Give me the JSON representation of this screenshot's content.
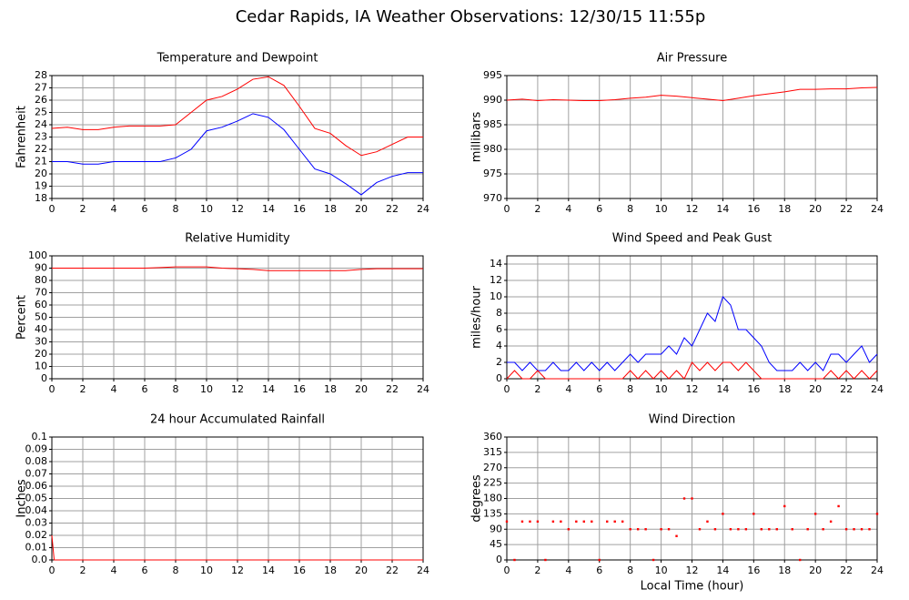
{
  "title": "Cedar Rapids, IA Weather Observations: 12/30/15 11:55p",
  "chart_data": [
    {
      "type": "line",
      "title": "Temperature and Dewpoint",
      "ylabel": "Fahrenheit",
      "x": [
        0,
        1,
        2,
        3,
        4,
        5,
        6,
        7,
        8,
        9,
        10,
        11,
        12,
        13,
        14,
        15,
        16,
        17,
        18,
        19,
        20,
        21,
        22,
        23,
        24
      ],
      "series": [
        {
          "color": "#ff0000",
          "values": [
            23.7,
            23.8,
            23.6,
            23.6,
            23.8,
            23.9,
            23.9,
            23.9,
            24.0,
            25.0,
            26.0,
            26.3,
            26.9,
            27.7,
            27.9,
            27.2,
            25.5,
            23.7,
            23.3,
            22.3,
            21.5,
            21.8,
            22.4,
            23.0,
            23.0
          ]
        },
        {
          "color": "#0000ff",
          "values": [
            21.0,
            21.0,
            20.8,
            20.8,
            21.0,
            21.0,
            21.0,
            21.0,
            21.3,
            22.0,
            23.5,
            23.8,
            24.3,
            24.9,
            24.6,
            23.6,
            22.0,
            20.4,
            20.0,
            19.2,
            18.3,
            19.3,
            19.8,
            20.1,
            20.1
          ]
        }
      ],
      "xlim": [
        0,
        24
      ],
      "xticks": [
        0,
        2,
        4,
        6,
        8,
        10,
        12,
        14,
        16,
        18,
        20,
        22,
        24
      ],
      "ylim": [
        18,
        28
      ],
      "yticks": [
        18,
        19,
        20,
        21,
        22,
        23,
        24,
        25,
        26,
        27,
        28
      ],
      "grid": true
    },
    {
      "type": "line",
      "title": "Air Pressure",
      "ylabel": "millibars",
      "x": [
        0,
        1,
        2,
        3,
        4,
        5,
        6,
        7,
        8,
        9,
        10,
        11,
        12,
        13,
        14,
        15,
        16,
        17,
        18,
        19,
        20,
        21,
        22,
        23,
        24
      ],
      "series": [
        {
          "color": "#ff0000",
          "values": [
            990.0,
            990.2,
            989.9,
            990.1,
            990.0,
            989.9,
            989.9,
            990.1,
            990.4,
            990.6,
            991.0,
            990.8,
            990.5,
            990.2,
            989.9,
            990.4,
            990.9,
            991.3,
            991.7,
            992.2,
            992.2,
            992.3,
            992.3,
            992.5,
            992.6
          ]
        }
      ],
      "xlim": [
        0,
        24
      ],
      "xticks": [
        0,
        2,
        4,
        6,
        8,
        10,
        12,
        14,
        16,
        18,
        20,
        22,
        24
      ],
      "ylim": [
        970,
        995
      ],
      "yticks": [
        970,
        975,
        980,
        985,
        990,
        995
      ],
      "grid": true
    },
    {
      "type": "line",
      "title": "Relative Humidity",
      "ylabel": "Percent",
      "x": [
        0,
        1,
        2,
        3,
        4,
        5,
        6,
        7,
        8,
        9,
        10,
        11,
        12,
        13,
        14,
        15,
        16,
        17,
        18,
        19,
        20,
        21,
        22,
        23,
        24
      ],
      "series": [
        {
          "color": "#ff0000",
          "values": [
            90,
            90,
            90,
            90,
            90,
            90,
            90,
            90.5,
            91,
            91,
            91,
            90,
            89.5,
            89,
            88,
            88,
            88,
            88,
            88,
            88,
            89,
            89.5,
            89.5,
            89.5,
            89.5
          ]
        }
      ],
      "xlim": [
        0,
        24
      ],
      "xticks": [
        0,
        2,
        4,
        6,
        8,
        10,
        12,
        14,
        16,
        18,
        20,
        22,
        24
      ],
      "ylim": [
        0,
        100
      ],
      "yticks": [
        0,
        10,
        20,
        30,
        40,
        50,
        60,
        70,
        80,
        90,
        100
      ],
      "grid": true
    },
    {
      "type": "line",
      "title": "Wind Speed and Peak Gust",
      "ylabel": "miles/hour",
      "x": [
        0,
        0.5,
        1,
        1.5,
        2,
        2.5,
        3,
        3.5,
        4,
        4.5,
        5,
        5.5,
        6,
        6.5,
        7,
        7.5,
        8,
        8.5,
        9,
        9.5,
        10,
        10.5,
        11,
        11.5,
        12,
        12.5,
        13,
        13.5,
        14,
        14.5,
        15,
        15.5,
        16,
        16.5,
        17,
        17.5,
        18,
        18.5,
        19,
        19.5,
        20,
        20.5,
        21,
        21.5,
        22,
        22.5,
        23,
        23.5,
        24
      ],
      "series": [
        {
          "color": "#0000ff",
          "values": [
            2,
            2,
            1,
            2,
            1,
            1,
            2,
            1,
            1,
            2,
            1,
            2,
            1,
            2,
            1,
            2,
            3,
            2,
            3,
            3,
            3,
            4,
            3,
            5,
            4,
            6,
            8,
            7,
            10,
            9,
            6,
            6,
            5,
            4,
            2,
            1,
            1,
            1,
            2,
            1,
            2,
            1,
            3,
            3,
            2,
            3,
            4,
            2,
            3
          ]
        },
        {
          "color": "#ff0000",
          "values": [
            0,
            1,
            0,
            0,
            1,
            0,
            0,
            0,
            0,
            0,
            0,
            0,
            0,
            0,
            0,
            0,
            1,
            0,
            1,
            0,
            1,
            0,
            1,
            0,
            2,
            1,
            2,
            1,
            2,
            2,
            1,
            2,
            1,
            0,
            0,
            0,
            0,
            0,
            0,
            0,
            0,
            0,
            1,
            0,
            1,
            0,
            1,
            0,
            1
          ]
        }
      ],
      "xlim": [
        0,
        24
      ],
      "xticks": [
        0,
        2,
        4,
        6,
        8,
        10,
        12,
        14,
        16,
        18,
        20,
        22,
        24
      ],
      "ylim": [
        0,
        15
      ],
      "yticks": [
        0,
        2,
        4,
        6,
        8,
        10,
        12,
        14
      ],
      "grid": true
    },
    {
      "type": "line",
      "title": "24 hour Accumulated Rainfall",
      "ylabel": "Inches",
      "x": [
        0,
        0.15,
        24
      ],
      "series": [
        {
          "color": "#ff0000",
          "values": [
            0.02,
            0,
            0
          ]
        }
      ],
      "xlim": [
        0,
        24
      ],
      "xticks": [
        0,
        2,
        4,
        6,
        8,
        10,
        12,
        14,
        16,
        18,
        20,
        22,
        24
      ],
      "ylim": [
        0,
        0.1
      ],
      "yticks": [
        {
          "value": 0,
          "label": "0.0"
        },
        0.01,
        0.02,
        0.03,
        0.04,
        0.05,
        0.06,
        0.07,
        0.08,
        0.09,
        0.1
      ],
      "grid": true
    },
    {
      "type": "scatter",
      "title": "Wind Direction",
      "ylabel": "degrees",
      "xlabel": "Local Time (hour)",
      "x": [
        0,
        0.5,
        1,
        1.5,
        2,
        2.5,
        3,
        3.5,
        4,
        4.5,
        5,
        5.5,
        6,
        6.5,
        7,
        7.5,
        8,
        8.5,
        9,
        9.5,
        10,
        10.5,
        11,
        11.5,
        12,
        12.5,
        13,
        13.5,
        14,
        14.5,
        15,
        15.5,
        16,
        16.5,
        17,
        17.5,
        18,
        18.5,
        19,
        19.5,
        20,
        20.5,
        21,
        21.5,
        22,
        22.5,
        23,
        23.5,
        24
      ],
      "series": [
        {
          "color": "#ff0000",
          "values": [
            112.5,
            0,
            112.5,
            112.5,
            112.5,
            0,
            112.5,
            112.5,
            90,
            112.5,
            112.5,
            112.5,
            0,
            112.5,
            112.5,
            112.5,
            90,
            90,
            90,
            0,
            90,
            90,
            70,
            180,
            180,
            90,
            112.5,
            90,
            135,
            90,
            90,
            90,
            135,
            90,
            90,
            90,
            157.5,
            90,
            0,
            90,
            135,
            90,
            112.5,
            157.5,
            90,
            90,
            90,
            90,
            135
          ]
        }
      ],
      "xlim": [
        0,
        24
      ],
      "xticks": [
        0,
        2,
        4,
        6,
        8,
        10,
        12,
        14,
        16,
        18,
        20,
        22,
        24
      ],
      "ylim": [
        0,
        360
      ],
      "yticks": [
        0,
        45,
        90,
        135,
        180,
        225,
        270,
        315,
        360
      ],
      "grid": true
    }
  ]
}
